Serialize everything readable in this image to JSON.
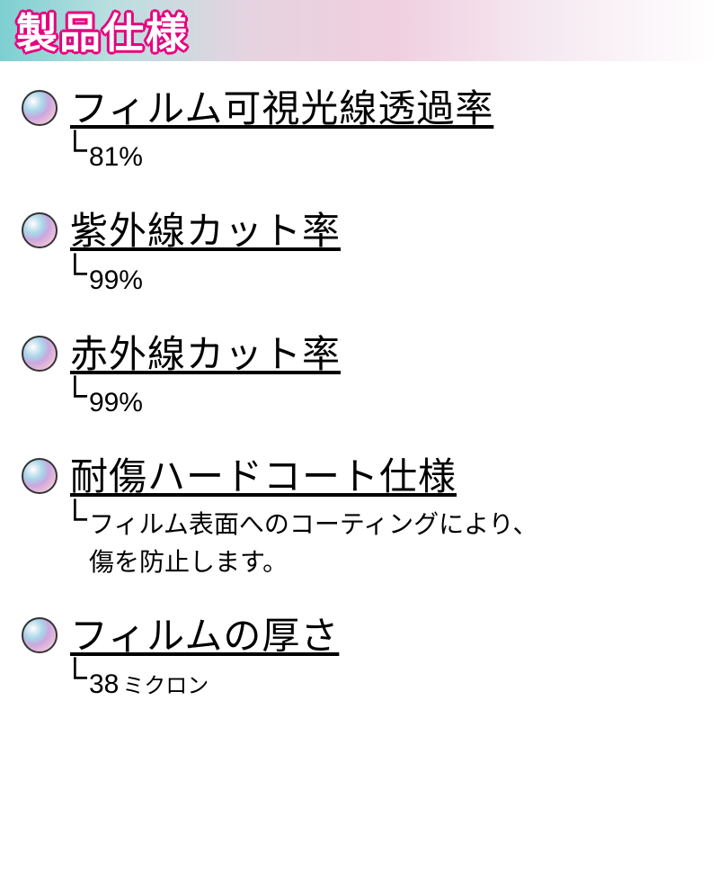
{
  "header": {
    "title": "製品仕様"
  },
  "specs": [
    {
      "label": "フィルム可視光線透過率",
      "value": "81%",
      "multiline": false
    },
    {
      "label": "紫外線カット率",
      "value": "99%",
      "multiline": false
    },
    {
      "label": "赤外線カット率",
      "value": "99%",
      "multiline": false
    },
    {
      "label": "耐傷ハードコート仕様",
      "value": "フィルム表面へのコーティングにより、\n傷を防止します。",
      "multiline": true
    },
    {
      "label": "フィルムの厚さ",
      "value": "38",
      "unit": "ミクロン",
      "multiline": false
    }
  ],
  "colors": {
    "accent_pink": "#e6007e",
    "header_gradient_start": "#7dcfd1",
    "header_gradient_end": "#ffffff",
    "text": "#000000",
    "background": "#ffffff"
  }
}
